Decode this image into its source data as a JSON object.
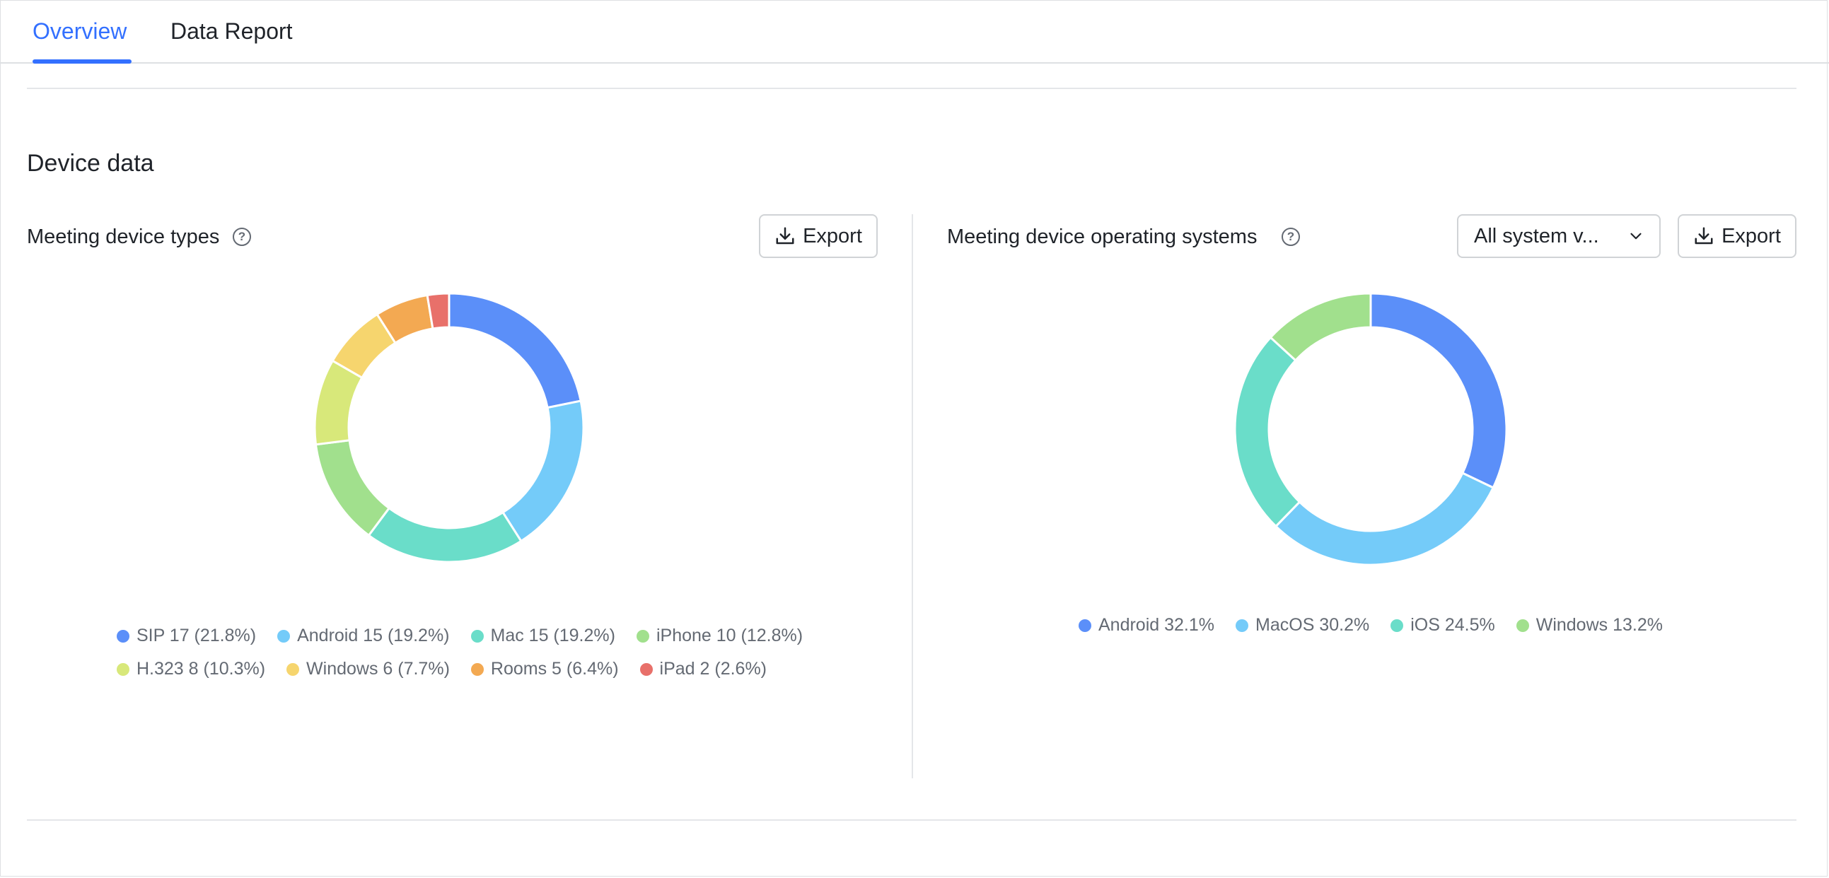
{
  "tabs": [
    {
      "label": "Overview",
      "active": true
    },
    {
      "label": "Data Report",
      "active": false
    }
  ],
  "section": {
    "title": "Device data"
  },
  "left_panel": {
    "title": "Meeting device types",
    "help_icon": "question-circle-icon",
    "export_label": "Export",
    "export_icon": "download-icon"
  },
  "right_panel": {
    "title": "Meeting device operating systems",
    "help_icon": "question-circle-icon",
    "filter_value": "All system v...",
    "filter_icon": "chevron-down-icon",
    "export_label": "Export",
    "export_icon": "download-icon"
  },
  "chart_data": [
    {
      "type": "pie",
      "variant": "donut",
      "series": [
        {
          "name": "SIP",
          "value": 17,
          "percent": 21.8,
          "label": "SIP 17 (21.8%)",
          "color": "#5b8ff9"
        },
        {
          "name": "Android",
          "value": 15,
          "percent": 19.2,
          "label": "Android 15 (19.2%)",
          "color": "#74cbf9"
        },
        {
          "name": "Mac",
          "value": 15,
          "percent": 19.2,
          "label": "Mac 15 (19.2%)",
          "color": "#6addc9"
        },
        {
          "name": "iPhone",
          "value": 10,
          "percent": 12.8,
          "label": "iPhone 10 (12.8%)",
          "color": "#a1e08d"
        },
        {
          "name": "H.323",
          "value": 8,
          "percent": 10.3,
          "label": "H.323 8 (10.3%)",
          "color": "#d8e87a"
        },
        {
          "name": "Windows",
          "value": 6,
          "percent": 7.7,
          "label": "Windows 6 (7.7%)",
          "color": "#f6d56e"
        },
        {
          "name": "Rooms",
          "value": 5,
          "percent": 6.4,
          "label": "Rooms 5 (6.4%)",
          "color": "#f3a952"
        },
        {
          "name": "iPad",
          "value": 2,
          "percent": 2.6,
          "label": "iPad 2 (2.6%)",
          "color": "#e8706a"
        }
      ],
      "legend_placement": "bottom"
    },
    {
      "type": "pie",
      "variant": "donut",
      "series": [
        {
          "name": "Android",
          "percent": 32.1,
          "label": "Android 32.1%",
          "color": "#5b8ff9"
        },
        {
          "name": "MacOS",
          "percent": 30.2,
          "label": "MacOS 30.2%",
          "color": "#74cbf9"
        },
        {
          "name": "iOS",
          "percent": 24.5,
          "label": "iOS 24.5%",
          "color": "#6addc9"
        },
        {
          "name": "Windows",
          "percent": 13.2,
          "label": "Windows 13.2%",
          "color": "#a1e08d"
        }
      ],
      "legend_placement": "bottom"
    }
  ]
}
